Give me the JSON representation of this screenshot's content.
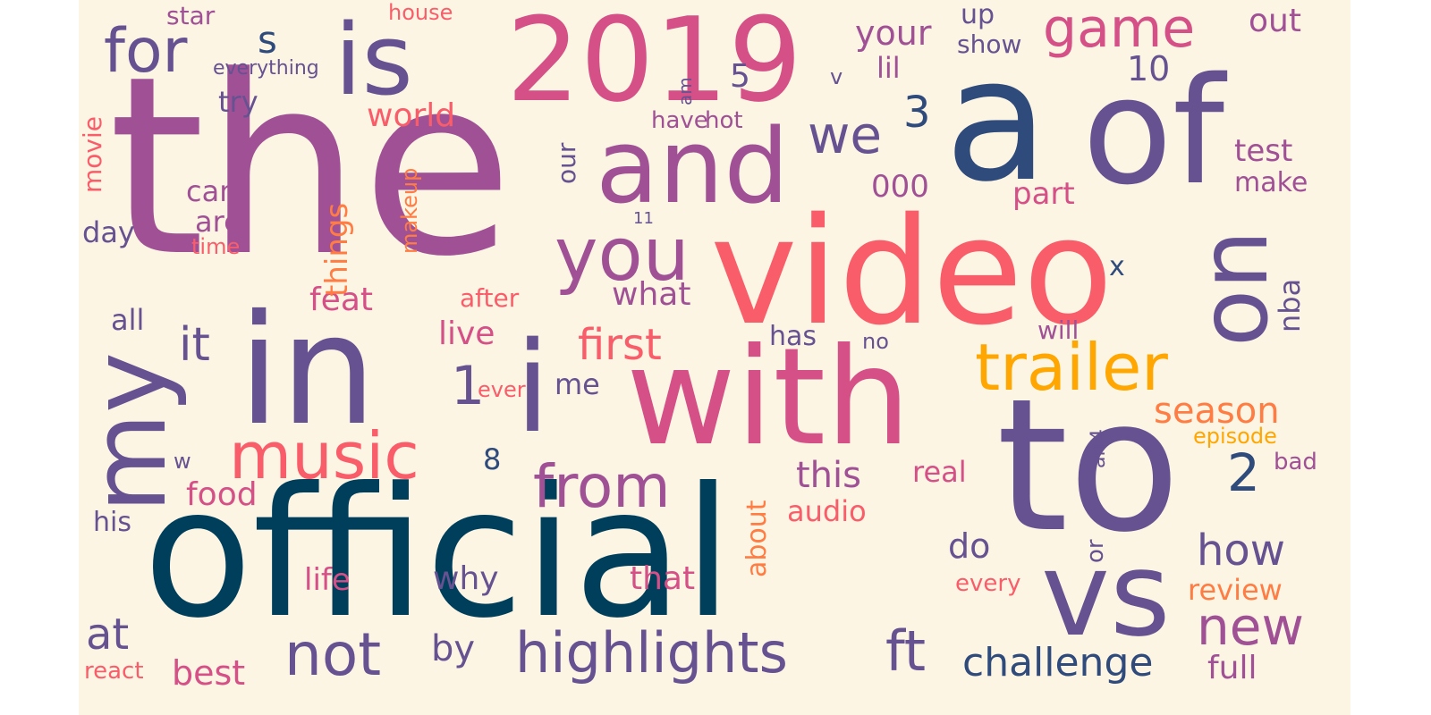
{
  "palette": {
    "background": "#fdf5e4",
    "navy": "#003f5c",
    "indigo": "#2f4b7c",
    "violet": "#665191",
    "purple": "#a05195",
    "magenta": "#d45087",
    "coral": "#f95d6a",
    "orange": "#ff7c43",
    "gold": "#ffa600"
  },
  "words": [
    {
      "text": "the",
      "color": "purple",
      "font_size": 276,
      "rotated": false
    },
    {
      "text": "official",
      "color": "navy",
      "font_size": 200,
      "rotated": false
    },
    {
      "text": "to",
      "color": "violet",
      "font_size": 205,
      "rotated": false
    },
    {
      "text": "video",
      "color": "coral",
      "font_size": 165,
      "rotated": false
    },
    {
      "text": "a",
      "color": "indigo",
      "font_size": 190,
      "rotated": false
    },
    {
      "text": "of",
      "color": "violet",
      "font_size": 165,
      "rotated": false
    },
    {
      "text": "in",
      "color": "violet",
      "font_size": 170,
      "rotated": false
    },
    {
      "text": "with",
      "color": "magenta",
      "font_size": 150,
      "rotated": false
    },
    {
      "text": "2019",
      "color": "magenta",
      "font_size": 130,
      "rotated": false
    },
    {
      "text": "i",
      "color": "violet",
      "font_size": 140,
      "rotated": false
    },
    {
      "text": "vs",
      "color": "violet",
      "font_size": 130,
      "rotated": false
    },
    {
      "text": "and",
      "color": "purple",
      "font_size": 115,
      "rotated": false
    },
    {
      "text": "is",
      "color": "violet",
      "font_size": 110,
      "rotated": false
    },
    {
      "text": "my",
      "color": "violet",
      "font_size": 115,
      "rotated": true
    },
    {
      "text": "on",
      "color": "violet",
      "font_size": 105,
      "rotated": true
    },
    {
      "text": "trailer",
      "color": "gold",
      "font_size": 72,
      "rotated": false
    },
    {
      "text": "you",
      "color": "purple",
      "font_size": 82,
      "rotated": false
    },
    {
      "text": "music",
      "color": "coral",
      "font_size": 72,
      "rotated": false
    },
    {
      "text": "highlights",
      "color": "violet",
      "font_size": 62,
      "rotated": false
    },
    {
      "text": "from",
      "color": "purple",
      "font_size": 66,
      "rotated": false
    },
    {
      "text": "for",
      "color": "violet",
      "font_size": 68,
      "rotated": false
    },
    {
      "text": "game",
      "color": "magenta",
      "font_size": 60,
      "rotated": false
    },
    {
      "text": "not",
      "color": "violet",
      "font_size": 66,
      "rotated": false
    },
    {
      "text": "ft",
      "color": "violet",
      "font_size": 62,
      "rotated": false
    },
    {
      "text": "new",
      "color": "purple",
      "font_size": 58,
      "rotated": false
    },
    {
      "text": "we",
      "color": "violet",
      "font_size": 58,
      "rotated": false
    },
    {
      "text": "first",
      "color": "coral",
      "font_size": 48,
      "rotated": false
    },
    {
      "text": "it",
      "color": "violet",
      "font_size": 52,
      "rotated": false
    },
    {
      "text": "how",
      "color": "violet",
      "font_size": 48,
      "rotated": false
    },
    {
      "text": "1",
      "color": "violet",
      "font_size": 60,
      "rotated": false
    },
    {
      "text": "2",
      "color": "indigo",
      "font_size": 58,
      "rotated": false
    },
    {
      "text": "at",
      "color": "violet",
      "font_size": 48,
      "rotated": false
    },
    {
      "text": "challenge",
      "color": "indigo",
      "font_size": 44,
      "rotated": false
    },
    {
      "text": "season",
      "color": "orange",
      "font_size": 40,
      "rotated": false
    },
    {
      "text": "3",
      "color": "indigo",
      "font_size": 48,
      "rotated": false
    },
    {
      "text": "this",
      "color": "purple",
      "font_size": 40,
      "rotated": false
    },
    {
      "text": "by",
      "color": "violet",
      "font_size": 40,
      "rotated": false
    },
    {
      "text": "do",
      "color": "violet",
      "font_size": 38,
      "rotated": false
    },
    {
      "text": "s",
      "color": "indigo",
      "font_size": 42,
      "rotated": false
    },
    {
      "text": "your",
      "color": "purple",
      "font_size": 38,
      "rotated": false
    },
    {
      "text": "best",
      "color": "magenta",
      "font_size": 38,
      "rotated": false
    },
    {
      "text": "world",
      "color": "coral",
      "font_size": 36,
      "rotated": false
    },
    {
      "text": "why",
      "color": "violet",
      "font_size": 36,
      "rotated": false
    },
    {
      "text": "feat",
      "color": "magenta",
      "font_size": 36,
      "rotated": false
    },
    {
      "text": "live",
      "color": "magenta",
      "font_size": 36,
      "rotated": false
    },
    {
      "text": "what",
      "color": "purple",
      "font_size": 36,
      "rotated": false
    },
    {
      "text": "that",
      "color": "magenta",
      "font_size": 36,
      "rotated": false
    },
    {
      "text": "food",
      "color": "magenta",
      "font_size": 36,
      "rotated": false
    },
    {
      "text": "life",
      "color": "magenta",
      "font_size": 34,
      "rotated": false
    },
    {
      "text": "full",
      "color": "purple",
      "font_size": 36,
      "rotated": false
    },
    {
      "text": "review",
      "color": "orange",
      "font_size": 32,
      "rotated": false
    },
    {
      "text": "part",
      "color": "magenta",
      "font_size": 34,
      "rotated": false
    },
    {
      "text": "test",
      "color": "purple",
      "font_size": 34,
      "rotated": false
    },
    {
      "text": "out",
      "color": "purple",
      "font_size": 36,
      "rotated": false
    },
    {
      "text": "10",
      "color": "violet",
      "font_size": 38,
      "rotated": false
    },
    {
      "text": "audio",
      "color": "coral",
      "font_size": 32,
      "rotated": false
    },
    {
      "text": "real",
      "color": "magenta",
      "font_size": 32,
      "rotated": false
    },
    {
      "text": "000",
      "color": "purple",
      "font_size": 34,
      "rotated": false
    },
    {
      "text": "lil",
      "color": "purple",
      "font_size": 32,
      "rotated": false
    },
    {
      "text": "can",
      "color": "purple",
      "font_size": 32,
      "rotated": false
    },
    {
      "text": "are",
      "color": "purple",
      "font_size": 32,
      "rotated": false
    },
    {
      "text": "day",
      "color": "violet",
      "font_size": 32,
      "rotated": false
    },
    {
      "text": "all",
      "color": "violet",
      "font_size": 32,
      "rotated": false
    },
    {
      "text": "his",
      "color": "violet",
      "font_size": 30,
      "rotated": false
    },
    {
      "text": "try",
      "color": "violet",
      "font_size": 32,
      "rotated": false
    },
    {
      "text": "up",
      "color": "violet",
      "font_size": 30,
      "rotated": false
    },
    {
      "text": "show",
      "color": "violet",
      "font_size": 28,
      "rotated": false
    },
    {
      "text": "star",
      "color": "purple",
      "font_size": 28,
      "rotated": false
    },
    {
      "text": "has",
      "color": "violet",
      "font_size": 30,
      "rotated": false
    },
    {
      "text": "will",
      "color": "purple",
      "font_size": 28,
      "rotated": false
    },
    {
      "text": "make",
      "color": "purple",
      "font_size": 30,
      "rotated": false
    },
    {
      "text": "me",
      "color": "violet",
      "font_size": 32,
      "rotated": false
    },
    {
      "text": "every",
      "color": "coral",
      "font_size": 26,
      "rotated": false
    },
    {
      "text": "react",
      "color": "coral",
      "font_size": 26,
      "rotated": false
    },
    {
      "text": "bad",
      "color": "purple",
      "font_size": 26,
      "rotated": false
    },
    {
      "text": "episode",
      "color": "gold",
      "font_size": 24,
      "rotated": false
    },
    {
      "text": "after",
      "color": "coral",
      "font_size": 28,
      "rotated": false
    },
    {
      "text": "have",
      "color": "purple",
      "font_size": 26,
      "rotated": false
    },
    {
      "text": "hot",
      "color": "purple",
      "font_size": 26,
      "rotated": false
    },
    {
      "text": "house",
      "color": "coral",
      "font_size": 24,
      "rotated": false
    },
    {
      "text": "everything",
      "color": "violet",
      "font_size": 22,
      "rotated": false
    },
    {
      "text": "time",
      "color": "coral",
      "font_size": 24,
      "rotated": false
    },
    {
      "text": "ever",
      "color": "coral",
      "font_size": 24,
      "rotated": false
    },
    {
      "text": "no",
      "color": "violet",
      "font_size": 24,
      "rotated": false
    },
    {
      "text": "5",
      "color": "violet",
      "font_size": 36,
      "rotated": false
    },
    {
      "text": "8",
      "color": "indigo",
      "font_size": 32,
      "rotated": false
    },
    {
      "text": "x",
      "color": "indigo",
      "font_size": 30,
      "rotated": false
    },
    {
      "text": "v",
      "color": "violet",
      "font_size": 24,
      "rotated": false
    },
    {
      "text": "w",
      "color": "violet",
      "font_size": 24,
      "rotated": false
    },
    {
      "text": "11",
      "color": "violet",
      "font_size": 18,
      "rotated": false
    },
    {
      "text": "things",
      "color": "orange",
      "font_size": 34,
      "rotated": true
    },
    {
      "text": "movie",
      "color": "coral",
      "font_size": 28,
      "rotated": true
    },
    {
      "text": "makeup",
      "color": "orange",
      "font_size": 24,
      "rotated": true
    },
    {
      "text": "our",
      "color": "violet",
      "font_size": 28,
      "rotated": true
    },
    {
      "text": "about",
      "color": "orange",
      "font_size": 30,
      "rotated": true
    },
    {
      "text": "nba",
      "color": "violet",
      "font_size": 32,
      "rotated": true
    },
    {
      "text": "an",
      "color": "violet",
      "font_size": 22,
      "rotated": true
    },
    {
      "text": "4",
      "color": "violet",
      "font_size": 22,
      "rotated": true
    },
    {
      "text": "or",
      "color": "violet",
      "font_size": 26,
      "rotated": true
    },
    {
      "text": "am",
      "color": "violet",
      "font_size": 20,
      "rotated": true
    }
  ]
}
